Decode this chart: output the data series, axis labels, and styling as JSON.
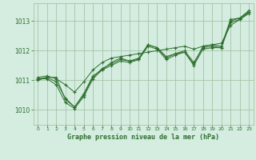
{
  "title": "Graphe pression niveau de la mer (hPa)",
  "background_color": "#d4ede0",
  "grid_color": "#9dbd9d",
  "line_color": "#2d6e2d",
  "marker_color": "#2d6e2d",
  "xlim": [
    -0.5,
    23.5
  ],
  "ylim": [
    1009.5,
    1013.6
  ],
  "yticks": [
    1010,
    1011,
    1012,
    1013
  ],
  "xticks": [
    0,
    1,
    2,
    3,
    4,
    5,
    6,
    7,
    8,
    9,
    10,
    11,
    12,
    13,
    14,
    15,
    16,
    17,
    18,
    19,
    20,
    21,
    22,
    23
  ],
  "xticklabels": [
    "0",
    "1",
    "2",
    "3",
    "4",
    "5",
    "6",
    "7",
    "8",
    "9",
    "10",
    "11",
    "12",
    "13",
    "14",
    "15",
    "16",
    "17",
    "18",
    "19",
    "20",
    "21",
    "22",
    "23"
  ],
  "series": [
    [
      1011.0,
      1011.1,
      1011.1,
      1010.35,
      1010.1,
      1010.55,
      1011.15,
      1011.35,
      1011.6,
      1011.75,
      1011.65,
      1011.7,
      1012.2,
      1012.1,
      1011.75,
      1011.9,
      1011.95,
      1011.55,
      1012.15,
      1012.2,
      1012.15,
      1013.05,
      1013.1,
      1013.35
    ],
    [
      1011.05,
      1011.05,
      1010.85,
      1010.25,
      1010.05,
      1010.45,
      1011.05,
      1011.35,
      1011.5,
      1011.65,
      1011.6,
      1011.7,
      1012.15,
      1012.05,
      1011.7,
      1011.85,
      1011.95,
      1011.5,
      1012.05,
      1012.1,
      1012.1,
      1012.95,
      1013.05,
      1013.25
    ],
    [
      1011.05,
      1011.1,
      1010.95,
      1010.4,
      1010.1,
      1010.5,
      1011.1,
      1011.4,
      1011.55,
      1011.7,
      1011.65,
      1011.75,
      1012.2,
      1012.1,
      1011.8,
      1011.9,
      1012.0,
      1011.6,
      1012.1,
      1012.15,
      1012.1,
      1013.0,
      1013.1,
      1013.3
    ],
    [
      1011.1,
      1011.15,
      1011.05,
      1010.85,
      1010.6,
      1010.95,
      1011.35,
      1011.6,
      1011.75,
      1011.8,
      1011.85,
      1011.9,
      1011.95,
      1012.0,
      1012.05,
      1012.1,
      1012.15,
      1012.05,
      1012.15,
      1012.2,
      1012.25,
      1012.85,
      1013.05,
      1013.3
    ]
  ]
}
